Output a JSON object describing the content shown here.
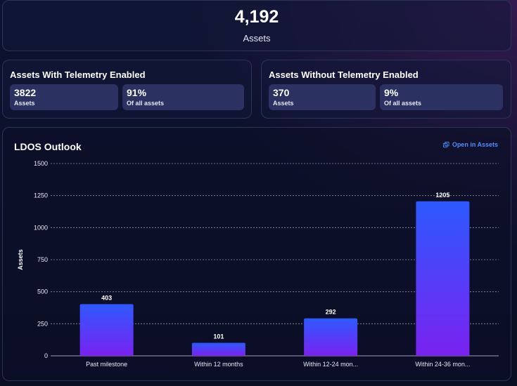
{
  "summary": {
    "total_value": "4,192",
    "total_label": "Assets"
  },
  "telemetry_enabled": {
    "title": "Assets With Telemetry Enabled",
    "count_value": "3822",
    "count_label": "Assets",
    "percent_value": "91%",
    "percent_label": "Of all assets"
  },
  "telemetry_disabled": {
    "title": "Assets Without Telemetry Enabled",
    "count_value": "370",
    "count_label": "Assets",
    "percent_value": "9%",
    "percent_label": "Of all assets"
  },
  "ldos": {
    "title": "LDOS Outlook",
    "open_link": "Open in Assets",
    "open_icon": "external-link-icon"
  },
  "colors": {
    "bar_top": "#2d59ff",
    "bar_bottom": "#7a22f0",
    "accent_link": "#4c8dff"
  },
  "chart_data": {
    "type": "bar",
    "categories": [
      "Past milestone",
      "Within 12 months",
      "Within 12-24 mon...",
      "Within 24-36 mon..."
    ],
    "values": [
      403,
      101,
      292,
      1205
    ],
    "value_labels": [
      "403",
      "101",
      "292",
      "1205"
    ],
    "ylabel": "Assets",
    "xlabel": "",
    "ylim": [
      0,
      1500
    ],
    "yticks": [
      0,
      250,
      500,
      750,
      1000,
      1250,
      1500
    ],
    "grid": true
  }
}
